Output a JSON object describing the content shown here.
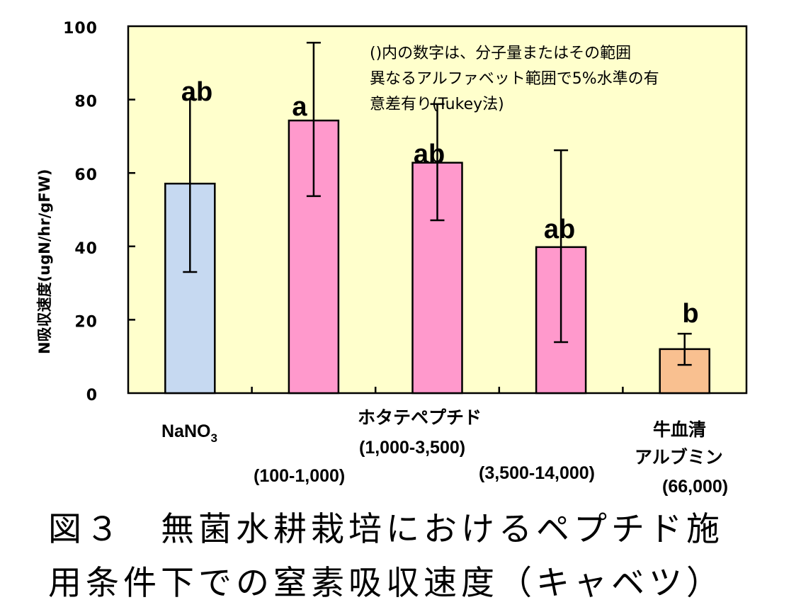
{
  "chart_data": {
    "type": "bar",
    "title": "",
    "xlabel": "",
    "ylabel": "N吸収速度(ugN/hr/gFW)",
    "ylim": [
      0,
      100
    ],
    "yticks": [
      0,
      20,
      40,
      60,
      80,
      100
    ],
    "grid": false,
    "categories": [
      "NaNO3",
      "(100-1,000)",
      "(1,000-3,500)",
      "(3,500-14,000)",
      "牛血清アルブミン (66,000)"
    ],
    "values": [
      57.1,
      74.3,
      62.8,
      39.8,
      12.0
    ],
    "error_upper": [
      80.1,
      95.5,
      78.8,
      66.2,
      16.2
    ],
    "error_lower": [
      33.0,
      53.7,
      47.1,
      13.9,
      7.7
    ],
    "significance": [
      "ab",
      "a",
      "ab",
      "ab",
      "b"
    ],
    "bar_colors": [
      "#C6D9F1",
      "#FF99CC",
      "#FF99CC",
      "#FF99CC",
      "#F9C090"
    ],
    "plot_background": "#FFFFCC",
    "annotation": [
      "()内の数字は、分子量またはその範囲",
      "異なるアルファベット範囲で5%水準の有",
      "意差有り(Tukey法)"
    ],
    "x_labels": {
      "nano3_main": "NaNO",
      "nano3_sub": "3",
      "scallop_group": "ホタテペプチド",
      "range1": "(100-1,000)",
      "range2": "(1,000-3,500)",
      "range3": "(3,500-14,000)",
      "bsa_line1": "牛血清",
      "bsa_line2": "アルブミン",
      "bsa_line3": "(66,000)"
    }
  },
  "caption": {
    "line1": "図３　無菌水耕栽培におけるペプチド施",
    "line2": "用条件下での窒素吸収速度（キャベツ）"
  }
}
